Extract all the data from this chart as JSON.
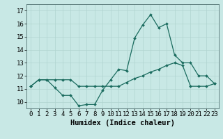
{
  "xlabel": "Humidex (Indice chaleur)",
  "x": [
    0,
    1,
    2,
    3,
    4,
    5,
    6,
    7,
    8,
    9,
    10,
    11,
    12,
    13,
    14,
    15,
    16,
    17,
    18,
    19,
    20,
    21,
    22,
    23
  ],
  "line1": [
    11.2,
    11.7,
    11.7,
    11.1,
    10.5,
    10.5,
    9.7,
    9.8,
    9.8,
    10.9,
    11.7,
    12.5,
    12.4,
    14.9,
    15.9,
    16.7,
    15.7,
    16.0,
    13.6,
    13.0,
    13.0,
    12.0,
    12.0,
    11.4
  ],
  "line2": [
    11.2,
    11.7,
    11.7,
    11.7,
    11.7,
    11.7,
    11.2,
    11.2,
    11.2,
    11.2,
    11.2,
    11.2,
    11.5,
    11.8,
    12.0,
    12.3,
    12.5,
    12.8,
    13.0,
    12.8,
    11.2,
    11.2,
    11.2,
    11.4
  ],
  "line_color": "#1a6b5e",
  "bg_color": "#c8e8e5",
  "grid_color": "#b0d4d0",
  "ylim": [
    9.5,
    17.5
  ],
  "yticks": [
    10,
    11,
    12,
    13,
    14,
    15,
    16,
    17
  ],
  "xtick_labels": [
    "0",
    "1",
    "2",
    "3",
    "4",
    "5",
    "6",
    "7",
    "8",
    "9",
    "10",
    "11",
    "12",
    "13",
    "14",
    "15",
    "16",
    "17",
    "18",
    "19",
    "20",
    "21",
    "22",
    "23"
  ],
  "spine_color": "#507070",
  "tick_fontsize": 6.5,
  "xlabel_fontsize": 7.5,
  "marker_size": 2.0,
  "line_width": 0.9
}
